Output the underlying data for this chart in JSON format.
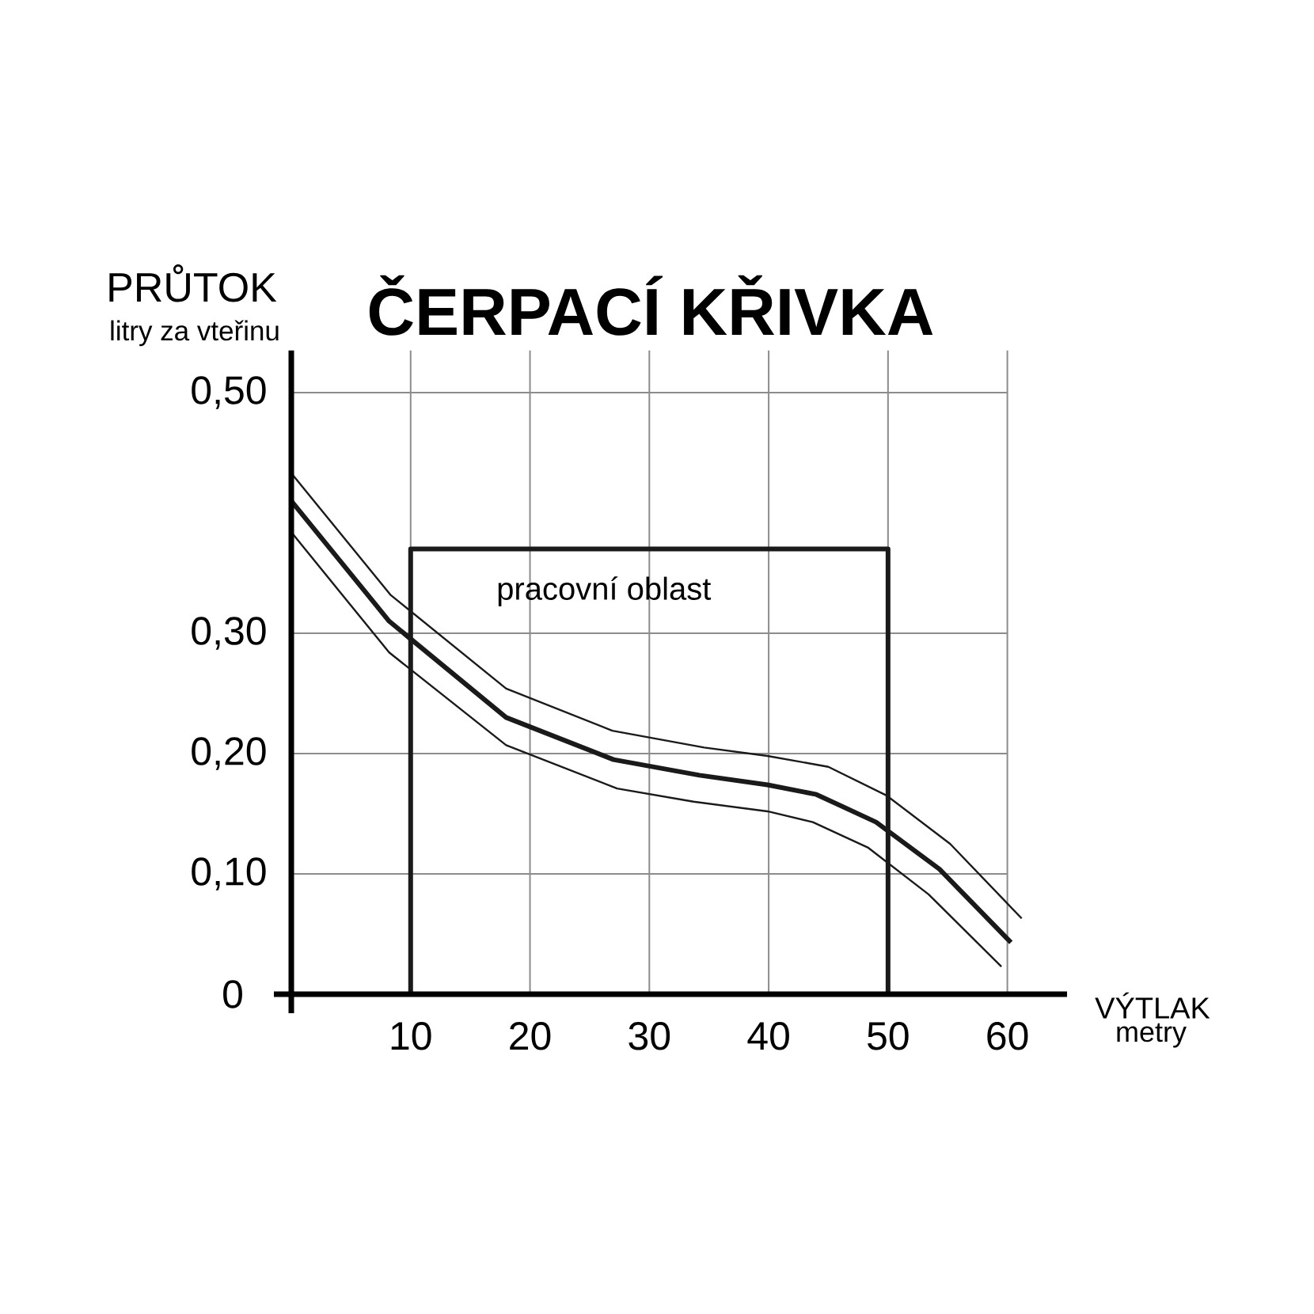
{
  "chart_data": {
    "type": "line",
    "title": "ČERPACÍ KŘIVKA",
    "xlabel": "VÝTLAK",
    "ylabel": "PRŮTOK",
    "annotations": [
      "litry za vteřinu",
      "metry"
    ],
    "xlim": [
      0,
      65
    ],
    "ylim": [
      0,
      0.535
    ],
    "xticks": [
      10,
      20,
      30,
      40,
      50,
      60
    ],
    "yticks": [
      {
        "value": 0,
        "label": "0"
      },
      {
        "value": 0.1,
        "label": "0,10"
      },
      {
        "value": 0.2,
        "label": "0,20"
      },
      {
        "value": 0.3,
        "label": "0,30"
      },
      {
        "value": 0.5,
        "label": "0,50"
      }
    ],
    "grid": true,
    "series": [
      {
        "color": "#1a1a1a",
        "x": [
          0,
          8.2,
          18,
          27,
          34.2,
          39.9,
          44,
          49,
          54.3,
          60.3
        ],
        "values": [
          0.41,
          0.31,
          0.23,
          0.195,
          0.182,
          0.174,
          0.166,
          0.143,
          0.104,
          0.043
        ]
      },
      {
        "color": "#1a1a1a",
        "x": [
          0,
          8.3,
          18,
          26.9,
          34.6,
          39.9,
          45,
          49.9,
          55.2,
          61.2
        ],
        "values": [
          0.433,
          0.332,
          0.254,
          0.219,
          0.205,
          0.198,
          0.189,
          0.165,
          0.125,
          0.063
        ]
      },
      {
        "color": "#1a1a1a",
        "x": [
          0,
          8.2,
          18,
          27.3,
          33.7,
          39.9,
          43.7,
          48.3,
          53.4,
          59.5
        ],
        "values": [
          0.384,
          0.284,
          0.207,
          0.171,
          0.16,
          0.152,
          0.143,
          0.122,
          0.083,
          0.023
        ]
      },
      {
        "name": "pracovní oblast",
        "color": "#1a1a1a",
        "x": [
          10,
          10,
          50,
          50
        ],
        "values": [
          0,
          0.37,
          0.37,
          0
        ]
      }
    ]
  }
}
